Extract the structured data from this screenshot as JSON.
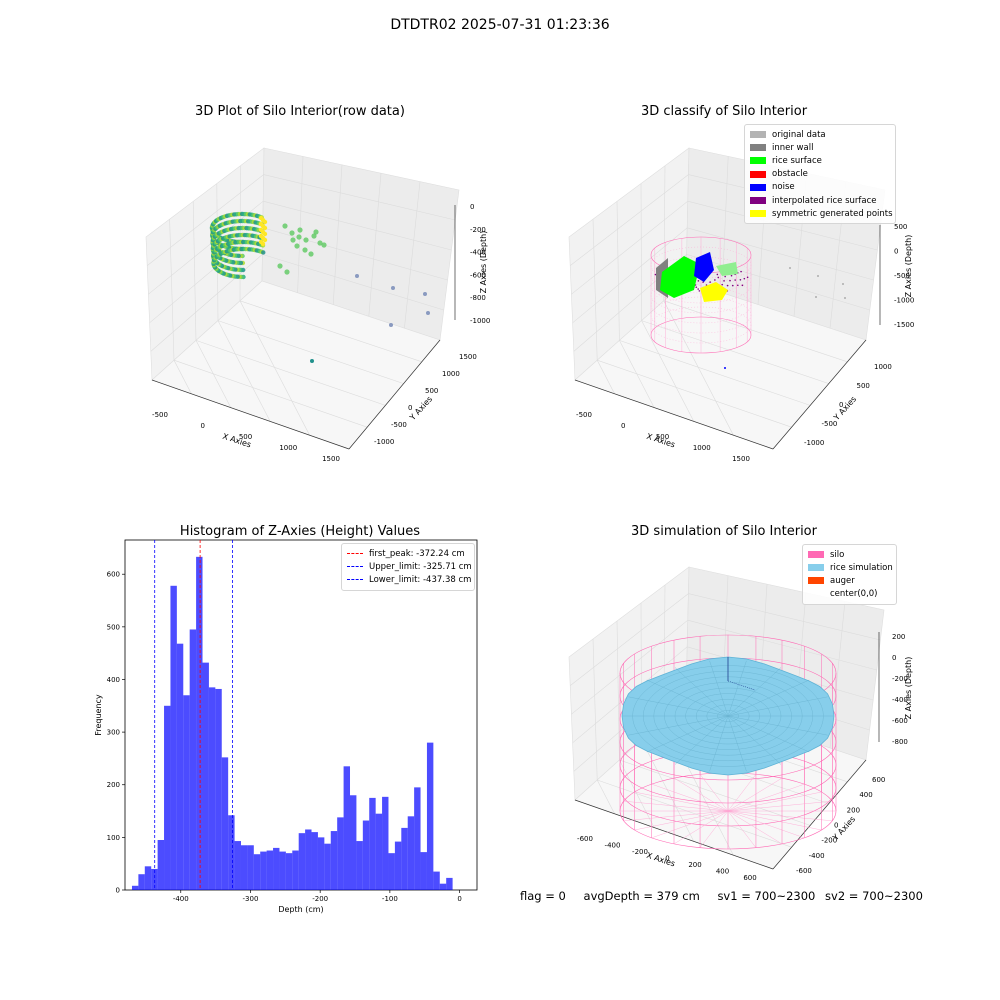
{
  "figure": {
    "suptitle": "DTDTR02 2025-07-31 01:23:36",
    "footer": {
      "flag": "flag = 0",
      "avg_depth": "avgDepth = 379 cm",
      "sv1": "sv1 = 700~2300",
      "sv2": "sv2 = 700~2300"
    }
  },
  "panels": {
    "raw": {
      "title": "3D Plot of Silo Interior(row data)",
      "xlabel": "X Axies",
      "ylabel": "Y Axies",
      "zlabel": "Z Axies (Depth)",
      "xticks": [
        "-500",
        "0",
        "500",
        "1000",
        "1500"
      ],
      "yticks": [
        "-1000",
        "-500",
        "0",
        "500",
        "1000",
        "1500"
      ],
      "zticks": [
        "0",
        "-200",
        "-400",
        "-600",
        "-800",
        "-1000"
      ]
    },
    "classify": {
      "title": "3D classify of Silo Interior",
      "xlabel": "X Axies",
      "ylabel": "Y Axies",
      "zlabel": "Z Axies (Depth)",
      "xticks": [
        "-500",
        "0",
        "500",
        "1000",
        "1500"
      ],
      "yticks": [
        "-1000",
        "-500",
        "0",
        "500",
        "1000"
      ],
      "zticks": [
        "500",
        "0",
        "-500",
        "-1000",
        "-1500"
      ],
      "legend": [
        {
          "label": "original data",
          "color": "#b3b3b3"
        },
        {
          "label": "inner wall",
          "color": "#808080"
        },
        {
          "label": "rice surface",
          "color": "#00ff00"
        },
        {
          "label": "obstacle",
          "color": "#ff0000"
        },
        {
          "label": "noise",
          "color": "#0000ff"
        },
        {
          "label": "interpolated rice surface",
          "color": "#800080"
        },
        {
          "label": "symmetric generated points",
          "color": "#ffff00"
        }
      ]
    },
    "simulation": {
      "title": "3D simulation of Silo Interior",
      "xlabel": "X Axies",
      "ylabel": "Y Axies",
      "zlabel": "Z Axies (Depth)",
      "xticks": [
        "-600",
        "-400",
        "-200",
        "0",
        "200",
        "400",
        "600"
      ],
      "yticks": [
        "-600",
        "-400",
        "-200",
        "0",
        "200",
        "400",
        "600"
      ],
      "zticks": [
        "200",
        "0",
        "-200",
        "-400",
        "-600",
        "-800"
      ],
      "legend": [
        {
          "label": "silo",
          "color": "#ff69b4"
        },
        {
          "label": "rice simulation",
          "color": "#87ceeb"
        },
        {
          "label": "auger",
          "color": "#ff4500"
        },
        {
          "label": "center(0,0)",
          "color": ""
        }
      ]
    }
  },
  "chart_data": {
    "type": "bar",
    "title": "Histogram of Z-Axies (Height) Values",
    "xlabel": "Depth (cm)",
    "ylabel": "Frequency",
    "xlim": [
      -480,
      25
    ],
    "ylim": [
      0,
      665
    ],
    "xticks": [
      -400,
      -300,
      -200,
      -100,
      0
    ],
    "yticks": [
      0,
      100,
      200,
      300,
      400,
      500,
      600
    ],
    "bar_color": "#0000ff",
    "bin_start": -470,
    "bin_width": 9.2,
    "values": [
      8,
      30,
      45,
      40,
      95,
      350,
      578,
      468,
      370,
      495,
      633,
      432,
      385,
      382,
      252,
      142,
      93,
      85,
      85,
      68,
      73,
      75,
      80,
      73,
      70,
      75,
      108,
      115,
      110,
      100,
      88,
      112,
      138,
      235,
      180,
      93,
      132,
      175,
      145,
      177,
      70,
      92,
      118,
      140,
      195,
      72,
      280,
      35,
      12,
      23
    ],
    "lines": [
      {
        "name": "first_peak",
        "value": -372.24,
        "label": "first_peak: -372.24 cm",
        "color": "#ff0000"
      },
      {
        "name": "Upper_limit",
        "value": -325.71,
        "label": "Upper_limit: -325.71 cm",
        "color": "#0000ff"
      },
      {
        "name": "Lower_limit",
        "value": -437.38,
        "label": "Lower_limit: -437.38 cm",
        "color": "#0000ff"
      }
    ],
    "legend_position": "top-right"
  }
}
